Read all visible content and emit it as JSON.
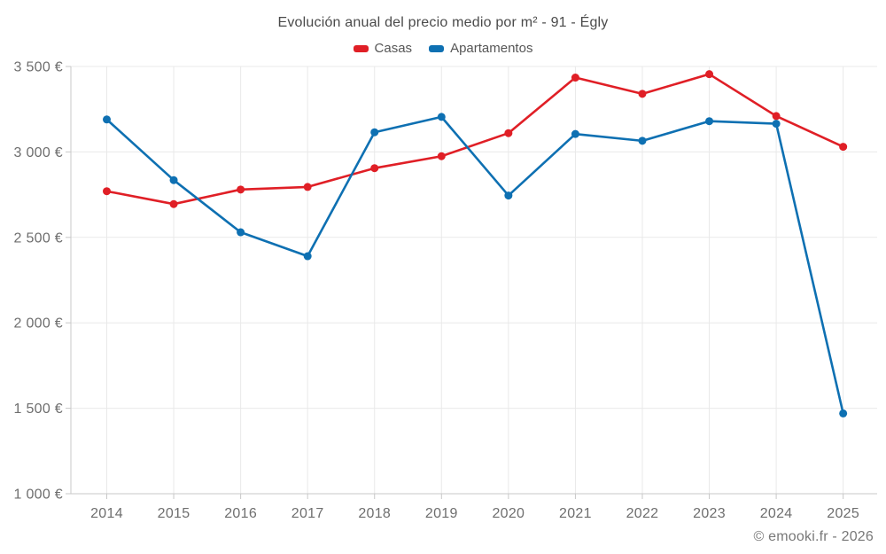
{
  "footer": {
    "copyright": "© emooki.fr - 2026"
  },
  "chart_data": {
    "type": "line",
    "title": "Evolución anual del precio medio por m² - 91 - Égly",
    "categories": [
      "2014",
      "2015",
      "2016",
      "2017",
      "2018",
      "2019",
      "2020",
      "2021",
      "2022",
      "2023",
      "2024",
      "2025"
    ],
    "series": [
      {
        "name": "Casas",
        "color": "#e01f26",
        "values": [
          2770,
          2695,
          2780,
          2795,
          2905,
          2975,
          3110,
          3435,
          3340,
          3455,
          3210,
          3030
        ]
      },
      {
        "name": "Apartamentos",
        "color": "#0e70b2",
        "values": [
          3190,
          2835,
          2530,
          2390,
          3115,
          3205,
          2745,
          3105,
          3065,
          3180,
          3165,
          1470
        ]
      }
    ],
    "xlabel": "",
    "ylabel": "",
    "ylim": [
      1000,
      3500
    ],
    "y_ticks": [
      {
        "value": 3500,
        "label": "3 500 €"
      },
      {
        "value": 3000,
        "label": "3 000 €"
      },
      {
        "value": 2500,
        "label": "2 500 €"
      },
      {
        "value": 2000,
        "label": "2 000 €"
      },
      {
        "value": 1500,
        "label": "1 500 €"
      },
      {
        "value": 1000,
        "label": "1 000 €"
      }
    ],
    "grid": true,
    "legend_position": "top",
    "marker": "circle"
  }
}
